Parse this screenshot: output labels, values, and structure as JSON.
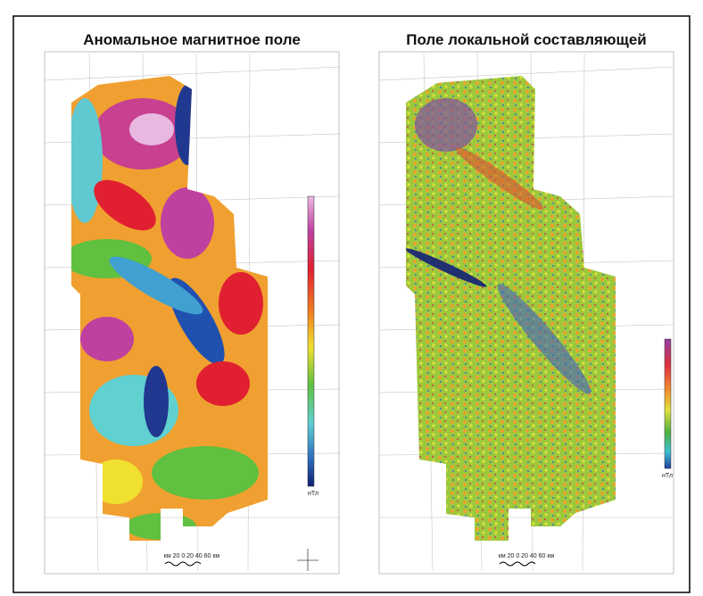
{
  "panels": [
    {
      "title": "Аномальное магнитное поле",
      "unit": "нТл",
      "scale": "км 20 0 20 40 60 км"
    },
    {
      "title": "Поле локальной составляющей",
      "unit": "нТл",
      "scale": "км 20 0 20 40 60 км"
    }
  ]
}
